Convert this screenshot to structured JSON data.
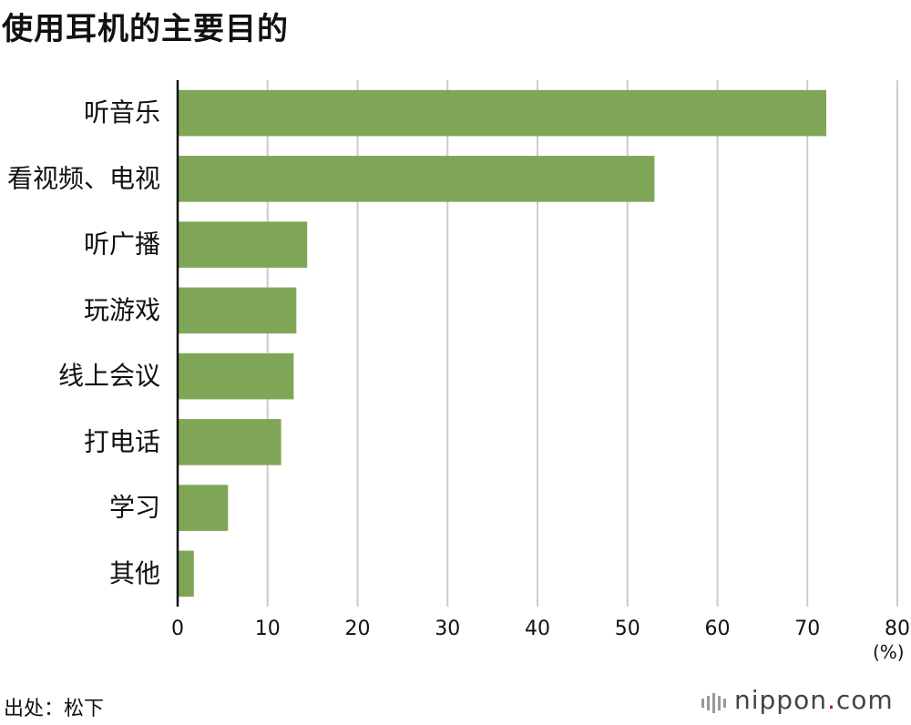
{
  "title": "使用耳机的主要目的",
  "source": "出处：松下",
  "unit": "(%)",
  "brand": {
    "name": "nippon",
    "dot": ".",
    "tld": "com"
  },
  "colors": {
    "bar": "#7fa656",
    "grid": "#cccccc",
    "axis": "#111111",
    "brand_dot": "#d6001c"
  },
  "chart_data": {
    "type": "bar",
    "orientation": "horizontal",
    "categories": [
      "听音乐",
      "看视频、电视",
      "听广播",
      "玩游戏",
      "线上会议",
      "打电话",
      "学习",
      "其他"
    ],
    "values": [
      72.1,
      53.0,
      14.4,
      13.2,
      12.9,
      11.5,
      5.6,
      1.8
    ],
    "xlim": [
      0,
      80
    ],
    "xticks": [
      0,
      10,
      20,
      30,
      40,
      50,
      60,
      70,
      80
    ],
    "grid": true
  }
}
